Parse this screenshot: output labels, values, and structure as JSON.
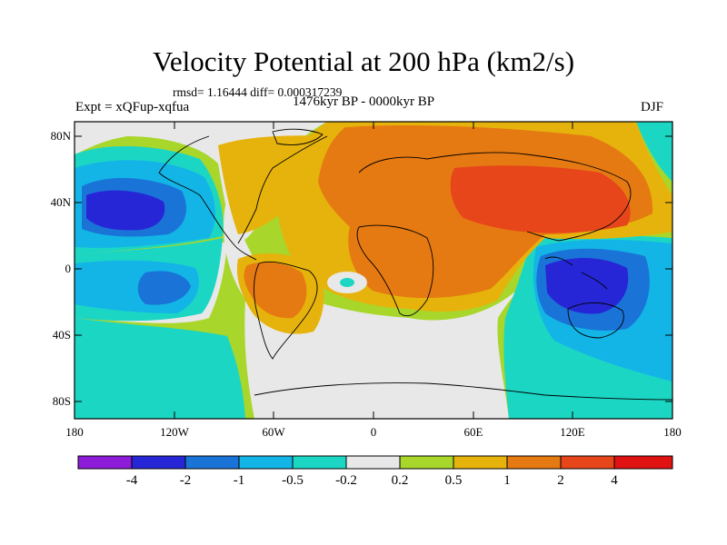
{
  "title": "Velocity Potential at 200 hPa (km2/s)",
  "stats": "rmsd= 1.16444 diff= 0.000317239",
  "experiment": "Expt = xQFup-xqfua",
  "period": "1476kyr BP - 0000kyr BP",
  "season": "DJF",
  "lat_labels": [
    "80N",
    "40N",
    "0",
    "40S",
    "80S"
  ],
  "lon_labels": [
    "180",
    "120W",
    "60W",
    "0",
    "60E",
    "120E",
    "180"
  ],
  "colorbar": {
    "labels": [
      "-4",
      "-2",
      "-1",
      "-0.5",
      "-0.2",
      "0.2",
      "0.5",
      "1",
      "2",
      "4"
    ],
    "colors": [
      "#8c1cd8",
      "#2626d6",
      "#1a74d8",
      "#13b5e6",
      "#1cd6c4",
      "#e8e8e8",
      "#a8d62a",
      "#e6b30c",
      "#e67a12",
      "#e6461a",
      "#e01212"
    ]
  },
  "map_colors": {
    "neg4": "#2626d6",
    "neg2": "#1a74d8",
    "neg1": "#13b5e6",
    "neg05": "#1cd6c4",
    "neutral": "#e8e8e8",
    "pos02": "#a8d62a",
    "pos05": "#e6b30c",
    "pos1": "#e67a12",
    "pos2": "#e6461a"
  }
}
